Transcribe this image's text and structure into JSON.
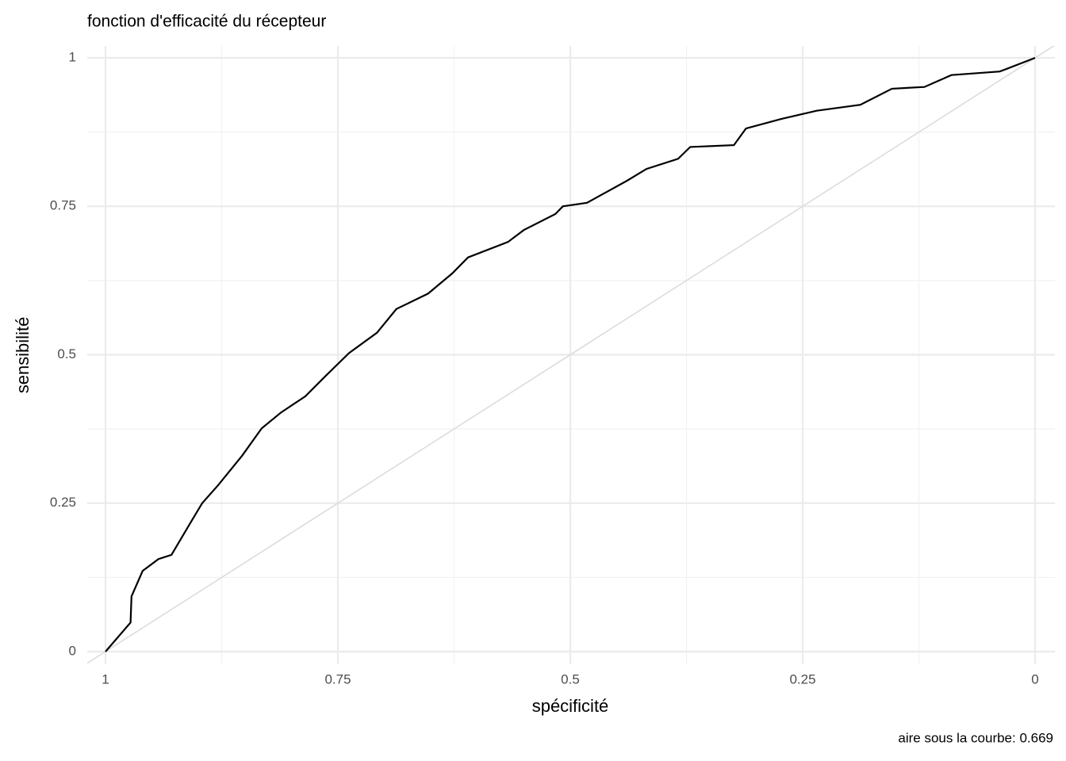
{
  "chart_data": {
    "type": "line",
    "title": "fonction d'efficacité du récepteur",
    "x_label": "spécificité",
    "y_label": "sensibilité",
    "caption": "aire sous la courbe: 0.669",
    "x": [
      1,
      0.973,
      0.972,
      0.96,
      0.943,
      0.929,
      0.909,
      0.896,
      0.879,
      0.853,
      0.832,
      0.811,
      0.785,
      0.764,
      0.738,
      0.708,
      0.687,
      0.653,
      0.627,
      0.61,
      0.567,
      0.55,
      0.516,
      0.508,
      0.482,
      0.439,
      0.418,
      0.384,
      0.371,
      0.324,
      0.311,
      0.273,
      0.235,
      0.188,
      0.154,
      0.119,
      0.09,
      0.038,
      0
    ],
    "values": [
      0,
      0.049,
      0.093,
      0.136,
      0.156,
      0.163,
      0.216,
      0.25,
      0.28,
      0.33,
      0.376,
      0.403,
      0.43,
      0.463,
      0.503,
      0.537,
      0.577,
      0.603,
      0.637,
      0.664,
      0.69,
      0.71,
      0.737,
      0.75,
      0.756,
      0.793,
      0.813,
      0.83,
      0.85,
      0.853,
      0.881,
      0.897,
      0.911,
      0.921,
      0.948,
      0.951,
      0.971,
      0.977,
      1
    ],
    "color": "#000000",
    "xlim": [
      1,
      0
    ],
    "xticks": [
      1,
      0.75,
      0.5,
      0.25,
      0
    ],
    "ylim": [
      0,
      1
    ],
    "yticks": [
      0,
      0.25,
      0.5,
      0.75,
      1
    ],
    "grid": true
  }
}
